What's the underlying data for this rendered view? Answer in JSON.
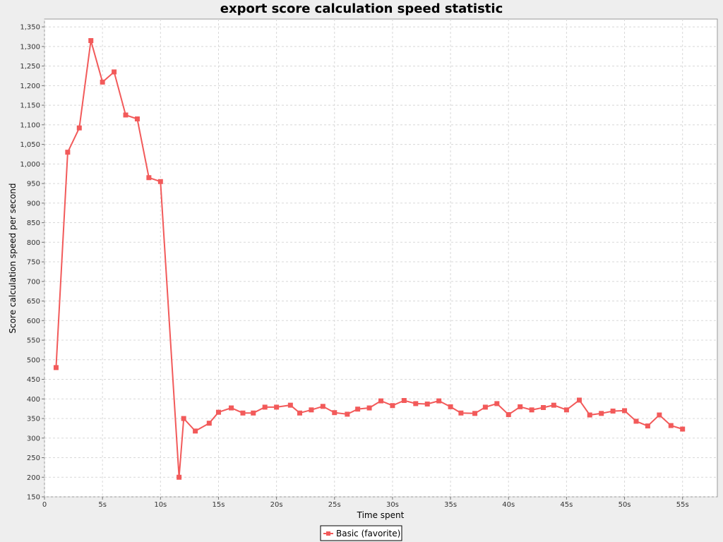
{
  "chart_data": {
    "type": "line",
    "title": "export score calculation speed statistic",
    "xlabel": "Time spent",
    "ylabel": "Score calculation speed per second",
    "xlim": [
      0,
      58
    ],
    "ylim": [
      150,
      1370
    ],
    "x_ticks": [
      0,
      5,
      10,
      15,
      20,
      25,
      30,
      35,
      40,
      45,
      50,
      55
    ],
    "x_tick_labels": [
      "0",
      "5s",
      "10s",
      "15s",
      "20s",
      "25s",
      "30s",
      "35s",
      "40s",
      "45s",
      "50s",
      "55s"
    ],
    "y_ticks": [
      150,
      200,
      250,
      300,
      350,
      400,
      450,
      500,
      550,
      600,
      650,
      700,
      750,
      800,
      850,
      900,
      950,
      1000,
      1050,
      1100,
      1150,
      1200,
      1250,
      1300,
      1350
    ],
    "y_tick_labels": [
      "150",
      "200",
      "250",
      "300",
      "350",
      "400",
      "450",
      "500",
      "550",
      "600",
      "650",
      "700",
      "750",
      "800",
      "850",
      "900",
      "950",
      "1,000",
      "1,050",
      "1,100",
      "1,150",
      "1,200",
      "1,250",
      "1,300",
      "1,350"
    ],
    "grid": true,
    "legend_position": "bottom-center",
    "series": [
      {
        "name": "Basic (favorite)",
        "color": "#f25a5a",
        "marker": "square",
        "x": [
          1,
          2,
          3,
          4,
          5,
          6,
          7,
          8,
          9,
          10,
          11.6,
          12,
          13,
          14.2,
          15,
          16.1,
          17.1,
          18,
          19,
          20,
          21.2,
          22,
          23,
          24,
          25,
          26.1,
          27,
          28,
          29,
          30,
          31,
          32,
          33,
          34,
          35,
          35.9,
          37.1,
          38,
          39,
          40,
          41,
          42,
          43,
          43.9,
          45,
          46.1,
          47,
          48,
          49,
          50,
          51,
          52,
          53,
          54,
          55
        ],
        "y": [
          480,
          1030,
          1092,
          1315,
          1209,
          1235,
          1125,
          1115,
          965,
          955,
          200,
          350,
          318,
          338,
          366,
          377,
          364,
          364,
          379,
          379,
          384,
          364,
          372,
          381,
          365,
          361,
          374,
          377,
          395,
          383,
          396,
          388,
          387,
          395,
          380,
          364,
          363,
          379,
          388,
          360,
          380,
          372,
          378,
          384,
          372,
          397,
          359,
          363,
          369,
          370,
          343,
          331,
          359,
          332,
          323
        ]
      }
    ]
  }
}
